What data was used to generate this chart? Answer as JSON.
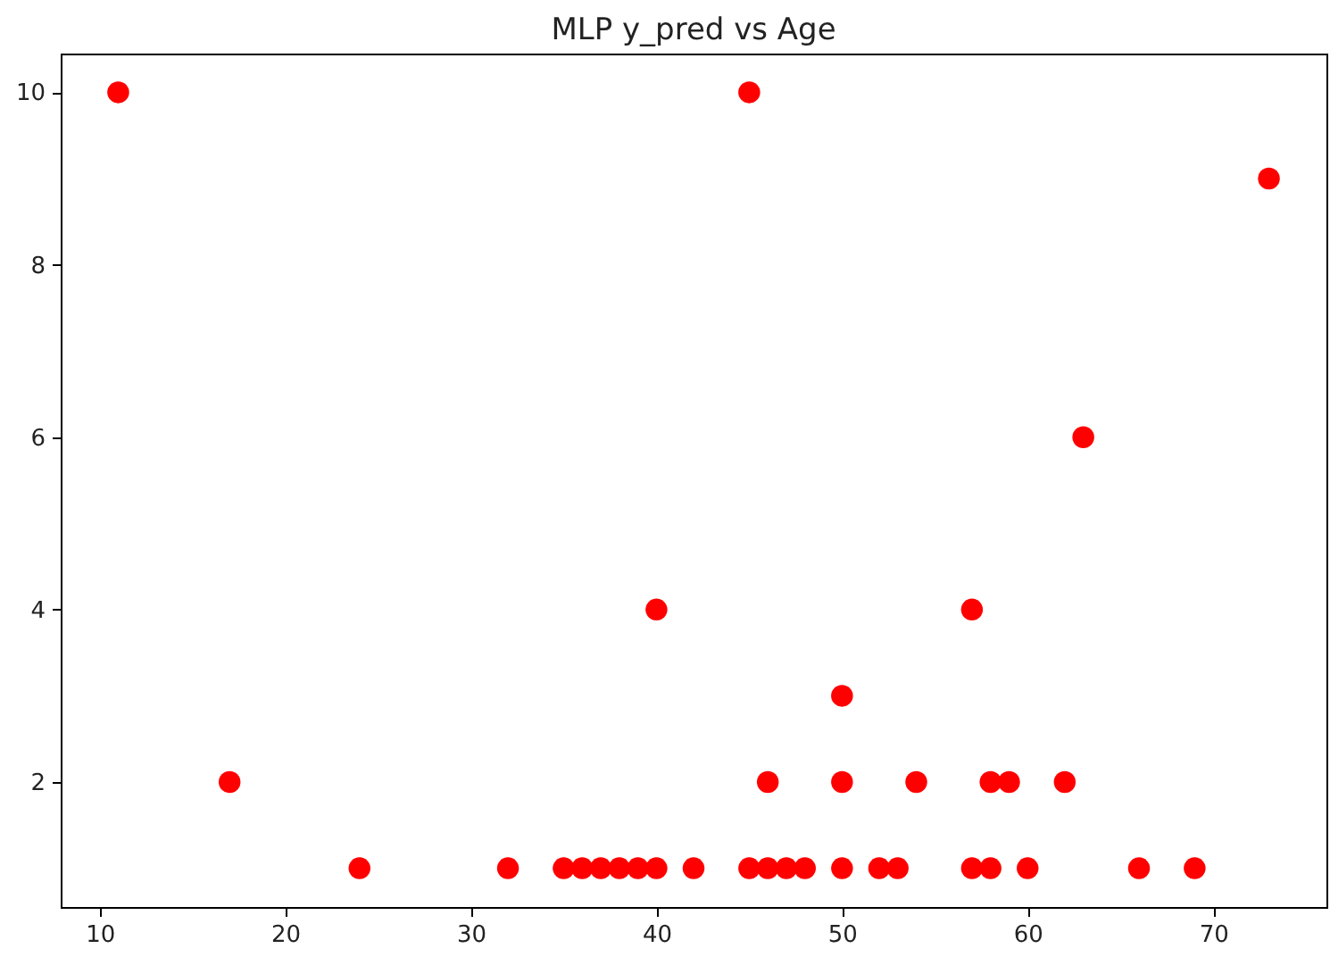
{
  "chart_data": {
    "type": "scatter",
    "title": "MLP y_pred vs Age",
    "marker": "circle",
    "grid": false,
    "x": [
      11,
      17,
      24,
      32,
      35,
      36,
      37,
      38,
      39,
      40,
      40,
      42,
      45,
      45,
      46,
      46,
      47,
      48,
      50,
      50,
      50,
      52,
      53,
      54,
      57,
      57,
      58,
      58,
      59,
      60,
      62,
      63,
      66,
      69,
      73
    ],
    "series": [
      {
        "color": "#ff0000",
        "values": [
          10,
          2,
          1,
          1,
          1,
          1,
          1,
          1,
          1,
          1,
          4,
          1,
          1,
          10,
          1,
          2,
          1,
          1,
          1,
          2,
          3,
          1,
          1,
          2,
          1,
          4,
          1,
          2,
          2,
          1,
          2,
          6,
          1,
          1,
          9
        ]
      }
    ],
    "xlim": [
      7.9,
      76.1
    ],
    "xticks": [
      10,
      20,
      30,
      40,
      50,
      60,
      70
    ],
    "ylim": [
      0.55,
      10.45
    ],
    "yticks": [
      2,
      4,
      6,
      8,
      10
    ]
  }
}
